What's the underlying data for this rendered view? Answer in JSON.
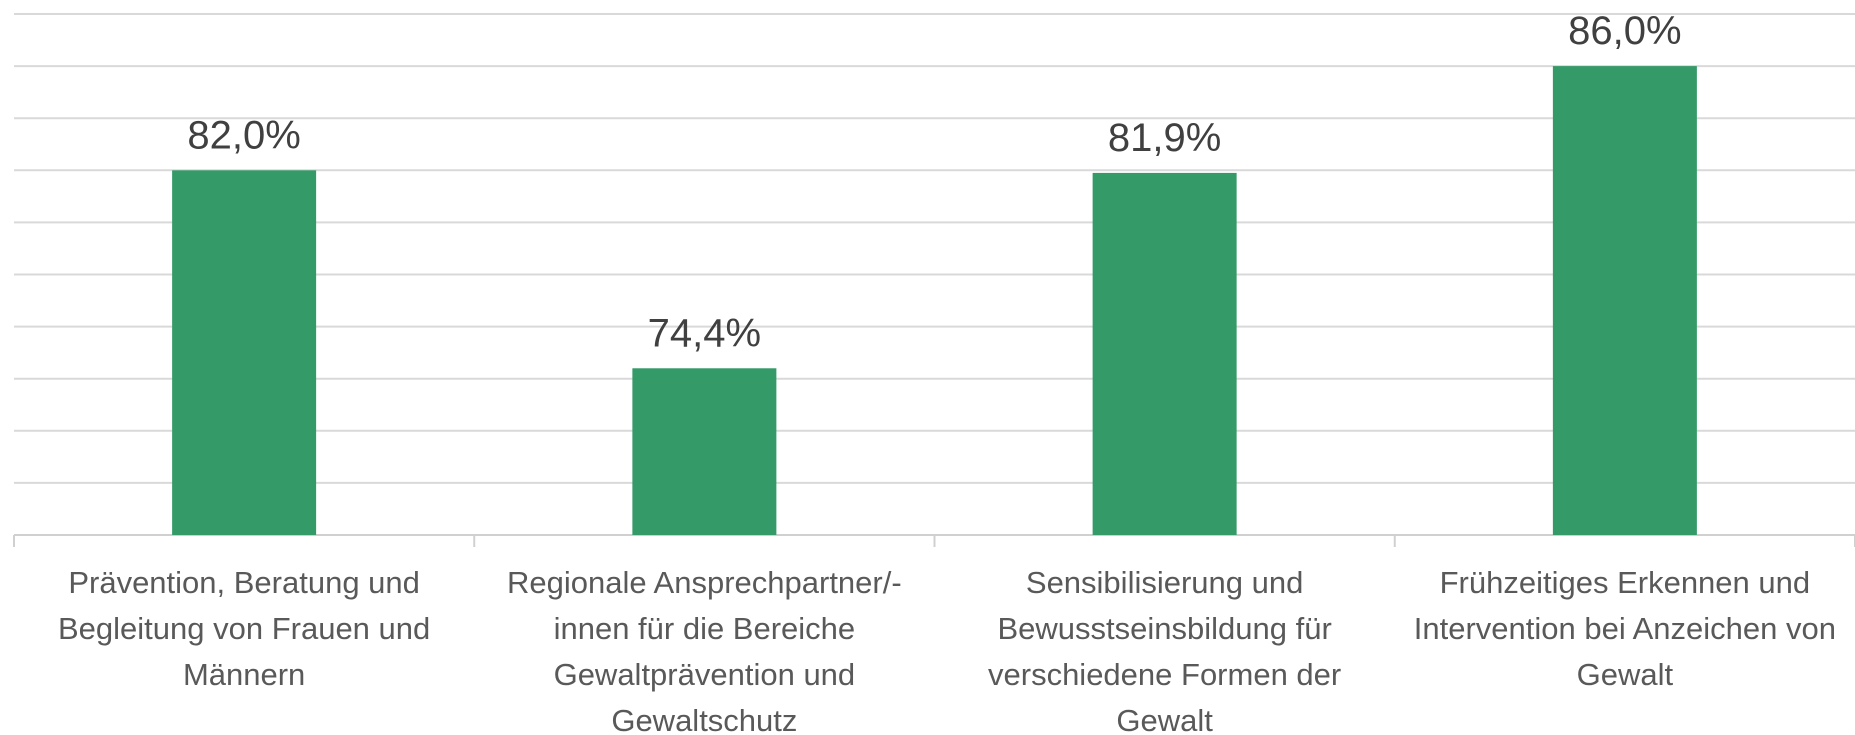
{
  "chart_data": {
    "type": "bar",
    "categories": [
      "Prävention, Beratung und Begleitung von Frauen und Männern",
      "Regionale Ansprechpartner/-innen für die Bereiche Gewaltprävention und Gewaltschutz",
      "Sensibilisierung und Bewusstseinsbildung für verschiedene Formen der Gewalt",
      "Frühzeitiges Erkennen und Intervention bei Anzeichen von Gewalt"
    ],
    "values": [
      82.0,
      74.4,
      81.9,
      86.0
    ],
    "value_labels": [
      "82,0%",
      "74,4%",
      "81,9%",
      "86,0%"
    ],
    "color": "#349a67",
    "ylim": [
      68,
      88
    ],
    "yticks": [
      68,
      70,
      72,
      74,
      76,
      78,
      80,
      82,
      84,
      86,
      88
    ],
    "grid": true
  }
}
